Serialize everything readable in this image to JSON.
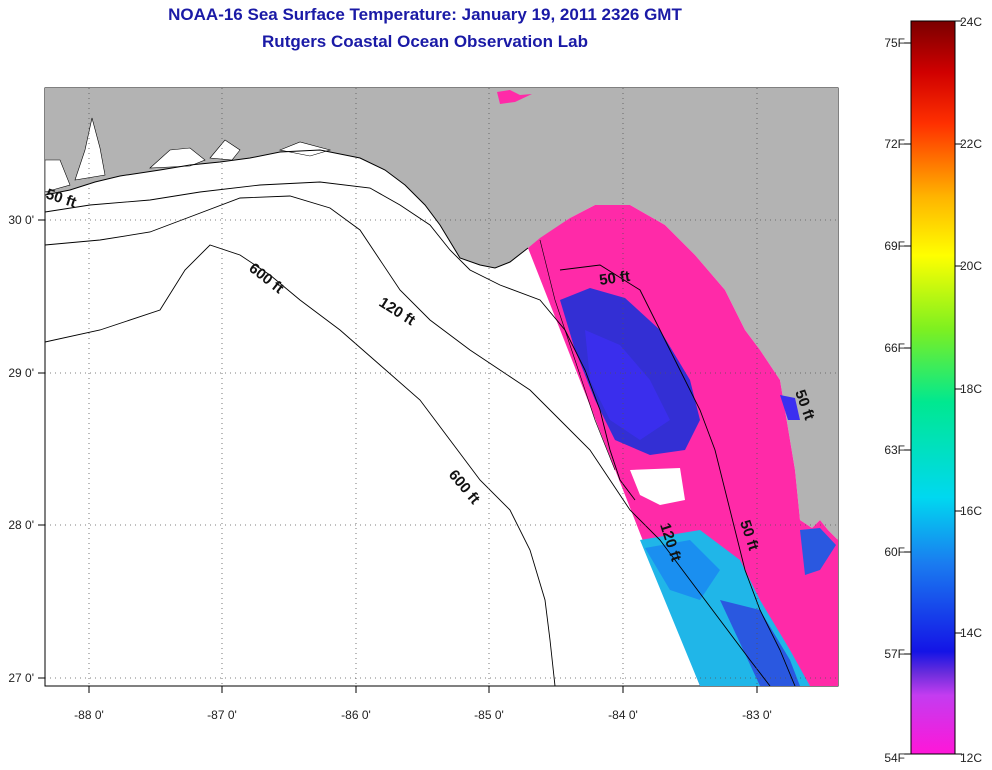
{
  "title_line1": "NOAA-16 Sea Surface Temperature:  January 19, 2011 2326 GMT",
  "title_line2": "Rutgers Coastal Ocean Observation Lab",
  "map": {
    "lon_ticks": [
      "-88 0'",
      "-87 0'",
      "-86 0'",
      "-85 0'",
      "-84 0'",
      "-83 0'"
    ],
    "lat_ticks": [
      "30 0'",
      "29 0'",
      "28 0'",
      "27 0'"
    ],
    "contour_labels": {
      "c50_west": "50 ft",
      "c600_a": "600 ft",
      "c120_a": "120 ft",
      "c600_b": "600 ft",
      "c50_east": "50 ft",
      "c120_b": "120 ft",
      "c50_south": "50 ft",
      "c50_coast": "50 ft"
    },
    "colors": {
      "land": "#b3b3b3",
      "sst_warm": "#ff2aa8",
      "sst_cold_blue": "#1e2ddc",
      "sst_cyan": "#22c8e8"
    }
  },
  "colorbar": {
    "fahrenheit": [
      "75F",
      "72F",
      "69F",
      "66F",
      "63F",
      "60F",
      "57F",
      "54F"
    ],
    "celsius": [
      "24C",
      "22C",
      "20C",
      "18C",
      "16C",
      "14C",
      "12C"
    ]
  }
}
